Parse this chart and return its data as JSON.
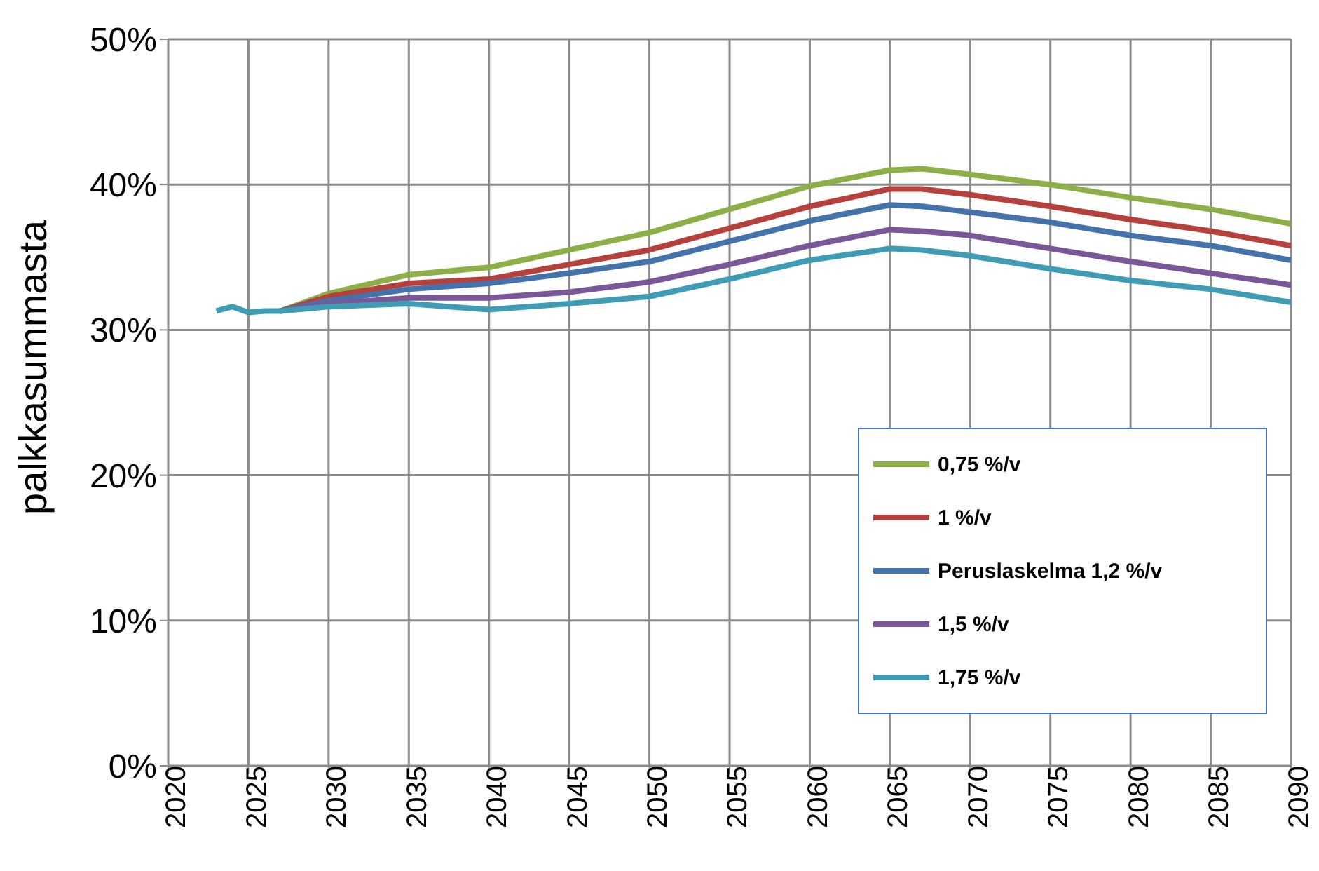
{
  "chart_data": {
    "type": "line",
    "ylabel": "palkkasummasta",
    "xlim": [
      2020,
      2090
    ],
    "xticks": [
      2020,
      2025,
      2030,
      2035,
      2040,
      2045,
      2050,
      2055,
      2060,
      2065,
      2070,
      2075,
      2080,
      2085,
      2090
    ],
    "ylim": [
      0,
      50
    ],
    "yticks": [
      {
        "value": 0,
        "label": "0%"
      },
      {
        "value": 10,
        "label": "10%"
      },
      {
        "value": 20,
        "label": "20%"
      },
      {
        "value": 30,
        "label": "30%"
      },
      {
        "value": 40,
        "label": "40%"
      },
      {
        "value": 50,
        "label": "50%"
      }
    ],
    "grid": true,
    "legend": "bottom right",
    "marker": "none",
    "line_style": "solid",
    "x": [
      2023,
      2024,
      2025,
      2026,
      2027,
      2030,
      2035,
      2040,
      2045,
      2050,
      2055,
      2060,
      2065,
      2067,
      2070,
      2075,
      2080,
      2085,
      2090
    ],
    "series": [
      {
        "name": "0,75 %/v",
        "color": "#8cb047",
        "values": [
          null,
          null,
          null,
          null,
          31.3,
          32.5,
          33.8,
          34.3,
          35.5,
          36.7,
          38.3,
          39.9,
          41.0,
          41.1,
          40.7,
          40.0,
          39.1,
          38.3,
          37.3
        ]
      },
      {
        "name": "1 %/v",
        "color": "#b5403c",
        "values": [
          null,
          null,
          null,
          null,
          31.3,
          32.3,
          33.2,
          33.5,
          34.5,
          35.5,
          37.0,
          38.5,
          39.7,
          39.7,
          39.3,
          38.5,
          37.6,
          36.8,
          35.8
        ]
      },
      {
        "name": "Peruslaskelma 1,2 %/v",
        "color": "#4472aa",
        "values": [
          null,
          null,
          null,
          null,
          31.3,
          32.0,
          32.8,
          33.2,
          33.9,
          34.7,
          36.1,
          37.5,
          38.6,
          38.5,
          38.1,
          37.4,
          36.5,
          35.8,
          34.8
        ]
      },
      {
        "name": "1,5 %/v",
        "color": "#7a5799",
        "values": [
          null,
          null,
          null,
          null,
          31.3,
          31.8,
          32.2,
          32.2,
          32.6,
          33.3,
          34.5,
          35.8,
          36.9,
          36.8,
          36.5,
          35.6,
          34.7,
          33.9,
          33.1
        ]
      },
      {
        "name": "1,75 %/v",
        "color": "#3e9db5",
        "values": [
          31.3,
          31.6,
          31.2,
          31.3,
          31.3,
          31.6,
          31.8,
          31.4,
          31.8,
          32.3,
          33.5,
          34.8,
          35.6,
          35.5,
          35.1,
          34.2,
          33.4,
          32.8,
          31.9
        ]
      }
    ]
  }
}
